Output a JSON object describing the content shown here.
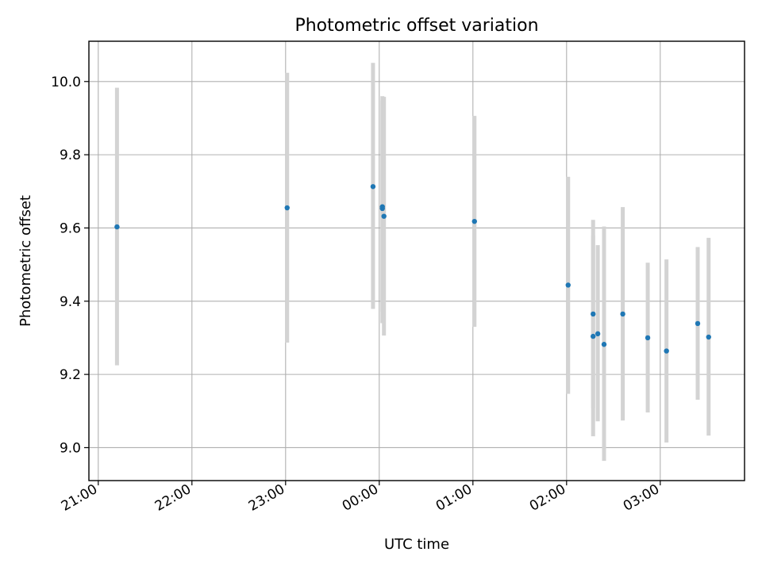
{
  "chart_data": {
    "type": "scatter",
    "title": "Photometric offset variation",
    "xlabel": "UTC time",
    "ylabel": "Photometric offset",
    "x_unit": "UTC time (HH:MM)",
    "xlim": [
      "20:54",
      "27:54"
    ],
    "ylim": [
      8.91,
      10.11
    ],
    "x_ticks": [
      "21:00",
      "22:00",
      "23:00",
      "00:00",
      "01:00",
      "02:00",
      "03:00"
    ],
    "y_ticks": [
      "9.0",
      "9.2",
      "9.4",
      "9.6",
      "9.8",
      "10.0"
    ],
    "grid": true,
    "legend": "none",
    "series": [
      {
        "color": "#1f77b4",
        "errorbar_color": "#d3d3d3",
        "points": [
          {
            "time": "21:12",
            "y": 9.603,
            "low": 9.225,
            "high": 9.983
          },
          {
            "time": "23:01",
            "y": 9.655,
            "low": 9.287,
            "high": 10.024
          },
          {
            "time": "23:56",
            "y": 9.713,
            "low": 9.379,
            "high": 10.051
          },
          {
            "time": "00:02",
            "y": 9.658,
            "low": 9.372,
            "high": 9.948
          },
          {
            "time": "00:02",
            "y": 9.653,
            "low": 9.34,
            "high": 9.96
          },
          {
            "time": "00:03",
            "y": 9.632,
            "low": 9.306,
            "high": 9.958
          },
          {
            "time": "01:01",
            "y": 9.618,
            "low": 9.33,
            "high": 9.906
          },
          {
            "time": "02:01",
            "y": 9.444,
            "low": 9.147,
            "high": 9.74
          },
          {
            "time": "02:17",
            "y": 9.365,
            "low": 9.108,
            "high": 9.622
          },
          {
            "time": "02:17",
            "y": 9.304,
            "low": 9.031,
            "high": 9.58
          },
          {
            "time": "02:20",
            "y": 9.311,
            "low": 9.072,
            "high": 9.553
          },
          {
            "time": "02:24",
            "y": 9.282,
            "low": 8.964,
            "high": 9.604
          },
          {
            "time": "02:36",
            "y": 9.365,
            "low": 9.074,
            "high": 9.657
          },
          {
            "time": "02:52",
            "y": 9.3,
            "low": 9.096,
            "high": 9.505
          },
          {
            "time": "03:04",
            "y": 9.264,
            "low": 9.014,
            "high": 9.514
          },
          {
            "time": "03:24",
            "y": 9.339,
            "low": 9.131,
            "high": 9.548
          },
          {
            "time": "03:31",
            "y": 9.302,
            "low": 9.033,
            "high": 9.573
          }
        ]
      }
    ]
  }
}
